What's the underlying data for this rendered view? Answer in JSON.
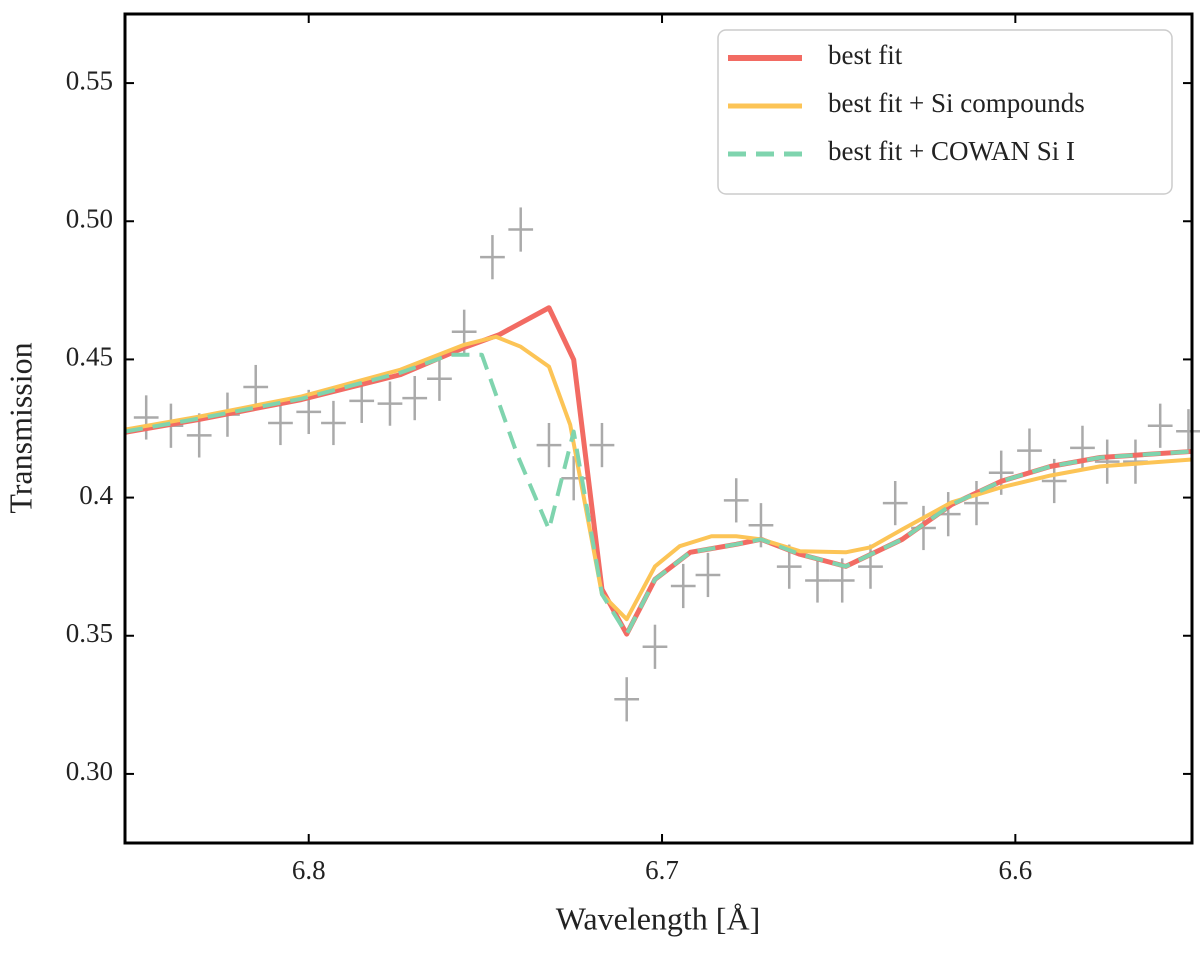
{
  "chart_data": {
    "type": "line",
    "xlabel": "Wavelength [Å]",
    "ylabel": "Transmission",
    "xlim": [
      6.852,
      6.55
    ],
    "ylim": [
      0.275,
      0.575
    ],
    "xticks": [
      6.8,
      6.7,
      6.6
    ],
    "yticks": [
      {
        "value": 0.3,
        "label": "0.30"
      },
      0.35,
      0.4,
      0.45,
      {
        "value": 0.5,
        "label": "0.50"
      },
      0.55
    ],
    "legend": "upper right",
    "data": {
      "color": "#aaaaaa",
      "yerr": 0.008,
      "xerr": 0.0035,
      "x": [
        6.846,
        6.839,
        6.831,
        6.823,
        6.815,
        6.808,
        6.8,
        6.793,
        6.785,
        6.777,
        6.77,
        6.763,
        6.756,
        6.748,
        6.74,
        6.732,
        6.725,
        6.717,
        6.71,
        6.702,
        6.694,
        6.687,
        6.679,
        6.672,
        6.664,
        6.656,
        6.649,
        6.641,
        6.634,
        6.626,
        6.619,
        6.611,
        6.604,
        6.596,
        6.589,
        6.581,
        6.574,
        6.566,
        6.559,
        6.551
      ],
      "values": [
        0.429,
        0.426,
        0.4225,
        0.43,
        0.44,
        0.427,
        0.431,
        0.427,
        0.435,
        0.434,
        0.436,
        0.443,
        0.46,
        0.487,
        0.497,
        0.419,
        0.407,
        0.419,
        0.327,
        0.346,
        0.368,
        0.372,
        0.399,
        0.39,
        0.375,
        0.37,
        0.37,
        0.375,
        0.398,
        0.389,
        0.394,
        0.398,
        0.409,
        0.417,
        0.406,
        0.418,
        0.413,
        0.413,
        0.426,
        0.424
      ]
    },
    "series": [
      {
        "name": "best fit",
        "color": "#f26b63",
        "dash": false,
        "width": 5,
        "x": [
          6.852,
          6.831,
          6.802,
          6.774,
          6.756,
          6.746,
          6.732,
          6.725,
          6.717,
          6.71,
          6.702,
          6.692,
          6.679,
          6.672,
          6.661,
          6.648,
          6.632,
          6.618,
          6.604,
          6.59,
          6.576,
          6.55
        ],
        "values": [
          0.4236,
          0.4283,
          0.4355,
          0.4445,
          0.4543,
          0.459,
          0.4687,
          0.4499,
          0.3668,
          0.3506,
          0.3704,
          0.3802,
          0.3831,
          0.3849,
          0.3795,
          0.3751,
          0.3849,
          0.3975,
          0.4059,
          0.4113,
          0.4145,
          0.4167
        ]
      },
      {
        "name": "best fit + Si compounds",
        "color": "#fcc456",
        "dash": false,
        "width": 4,
        "x": [
          6.852,
          6.831,
          6.802,
          6.774,
          6.756,
          6.747,
          6.74,
          6.732,
          6.726,
          6.717,
          6.71,
          6.702,
          6.695,
          6.686,
          6.679,
          6.672,
          6.661,
          6.648,
          6.641,
          6.632,
          6.618,
          6.604,
          6.59,
          6.576,
          6.55
        ],
        "values": [
          0.4246,
          0.4293,
          0.4366,
          0.4463,
          0.4553,
          0.4582,
          0.4546,
          0.4474,
          0.4264,
          0.365,
          0.356,
          0.3751,
          0.3824,
          0.386,
          0.386,
          0.3849,
          0.3806,
          0.3802,
          0.382,
          0.3885,
          0.3983,
          0.4037,
          0.408,
          0.4113,
          0.4138
        ]
      },
      {
        "name": "best fit + COWAN Si I",
        "color": "#7fd4ae",
        "dash": true,
        "width": 4,
        "x": [
          6.852,
          6.831,
          6.802,
          6.774,
          6.76,
          6.751,
          6.741,
          6.732,
          6.725,
          6.717,
          6.71,
          6.702,
          6.692,
          6.679,
          6.672,
          6.661,
          6.648,
          6.632,
          6.618,
          6.604,
          6.59,
          6.576,
          6.55
        ],
        "values": [
          0.4239,
          0.4286,
          0.4358,
          0.4452,
          0.4517,
          0.4517,
          0.4156,
          0.3885,
          0.4239,
          0.365,
          0.3506,
          0.3704,
          0.3802,
          0.3831,
          0.3849,
          0.3795,
          0.3751,
          0.3849,
          0.3975,
          0.4059,
          0.4113,
          0.4145,
          0.4167
        ]
      }
    ]
  }
}
